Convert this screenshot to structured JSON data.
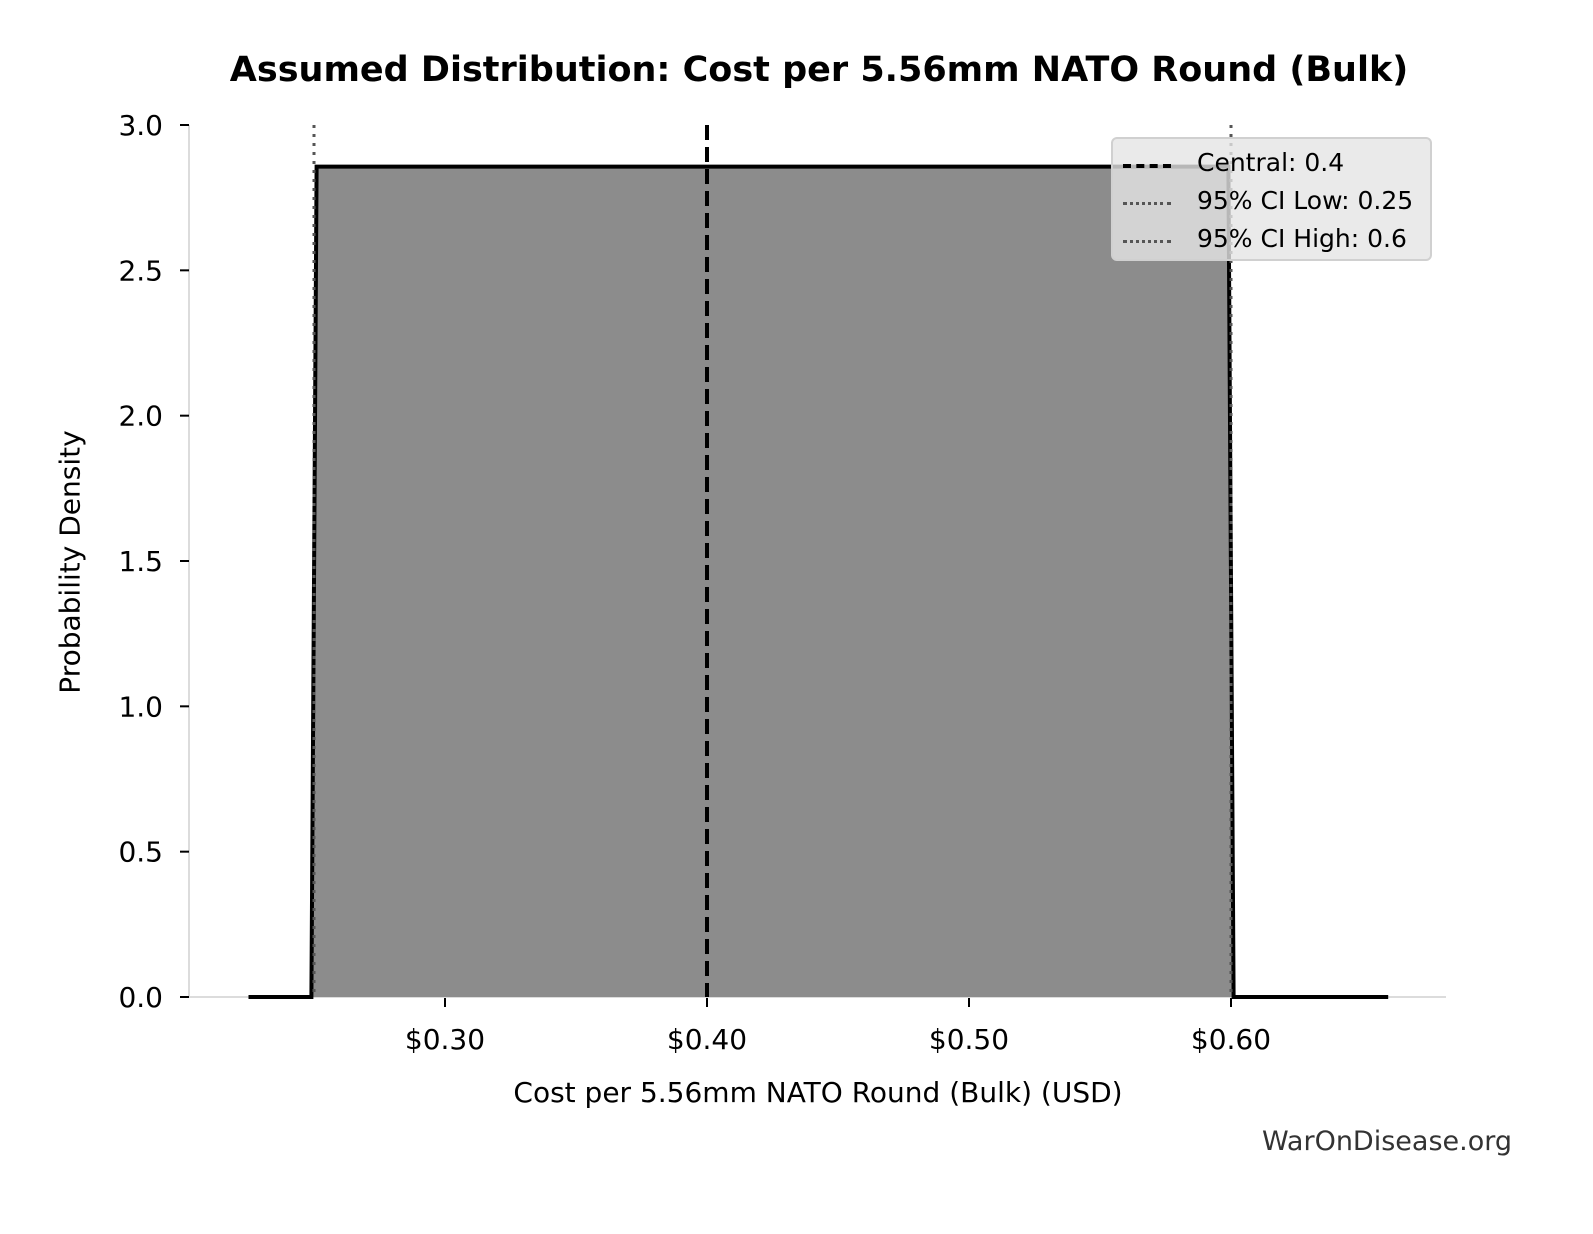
{
  "chart_data": {
    "type": "area",
    "title": "Assumed Distribution: Cost per 5.56mm NATO Round (Bulk)",
    "xlabel": "Cost per 5.56mm NATO Round (Bulk) (USD)",
    "ylabel": "Probability Density",
    "xlim": [
      0.207,
      0.687
    ],
    "ylim": [
      0.0,
      3.0
    ],
    "x_ticks": [
      0.3,
      0.4,
      0.5,
      0.6
    ],
    "x_tick_labels": [
      "$0.30",
      "$0.40",
      "$0.50",
      "$0.60"
    ],
    "y_ticks": [
      0.0,
      0.5,
      1.0,
      1.5,
      2.0,
      2.5,
      3.0
    ],
    "y_tick_labels": [
      "0.0",
      "0.5",
      "1.0",
      "1.5",
      "2.0",
      "2.5",
      "3.0"
    ],
    "grid": false,
    "distribution": "uniform",
    "series": [
      {
        "name": "density",
        "x": [
          0.225,
          0.249,
          0.251,
          0.599,
          0.601,
          0.66
        ],
        "y": [
          0.0,
          0.0,
          2.857,
          2.857,
          0.0,
          0.0
        ],
        "fill_color": "#8c8c8c",
        "line_color": "#000000"
      }
    ],
    "reference_lines": [
      {
        "label": "Central: 0.4",
        "x": 0.4,
        "style": "dashed",
        "color": "#000000"
      },
      {
        "label": "95% CI Low: 0.25",
        "x": 0.25,
        "style": "dotted",
        "color": "#555555"
      },
      {
        "label": "95% CI High: 0.6",
        "x": 0.6,
        "style": "dotted",
        "color": "#555555"
      }
    ],
    "legend_position": "upper right"
  },
  "legend": {
    "items": [
      {
        "label": "Central: 0.4",
        "style": "dashed"
      },
      {
        "label": "95% CI Low: 0.25",
        "style": "dotted"
      },
      {
        "label": "95% CI High: 0.6",
        "style": "dotted"
      }
    ]
  },
  "watermark": "WarOnDisease.org",
  "colors": {
    "fill": "#8c8c8c",
    "outline": "#000000",
    "ci_lines": "#555555",
    "axis": "#d9d9d9"
  }
}
